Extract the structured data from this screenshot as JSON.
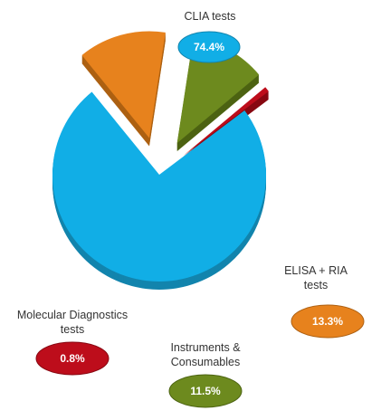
{
  "chart_data": {
    "type": "pie",
    "categories": [
      "CLIA tests",
      "ELISA + RIA tests",
      "Instruments & Consumables",
      "Molecular Diagnostics tests"
    ],
    "values": [
      74.4,
      13.3,
      11.5,
      0.8
    ],
    "value_labels": [
      "74.4%",
      "13.3%",
      "11.5%",
      "0.8%"
    ],
    "slices": [
      {
        "name": "CLIA tests",
        "label_lines": [
          "CLIA tests"
        ],
        "value": 74.4,
        "value_label": "74.4%",
        "color": "#11aee6",
        "side_color": "#1284ad"
      },
      {
        "name": "ELISA + RIA tests",
        "label_lines": [
          "ELISA + RIA",
          "tests"
        ],
        "value": 13.3,
        "value_label": "13.3%",
        "color": "#e7821d",
        "side_color": "#ad6012"
      },
      {
        "name": "Instruments & Consumables",
        "label_lines": [
          "Instruments &",
          "Consumables"
        ],
        "value": 11.5,
        "value_label": "11.5%",
        "color": "#6d8a1e",
        "side_color": "#4c6312"
      },
      {
        "name": "Molecular Diagnostics tests",
        "label_lines": [
          "Molecular Diagnostics",
          "tests"
        ],
        "value": 0.8,
        "value_label": "0.8%",
        "color": "#bd0d1b",
        "side_color": "#870812"
      }
    ],
    "title": "",
    "legend": "none",
    "style": "3d-exploded"
  }
}
